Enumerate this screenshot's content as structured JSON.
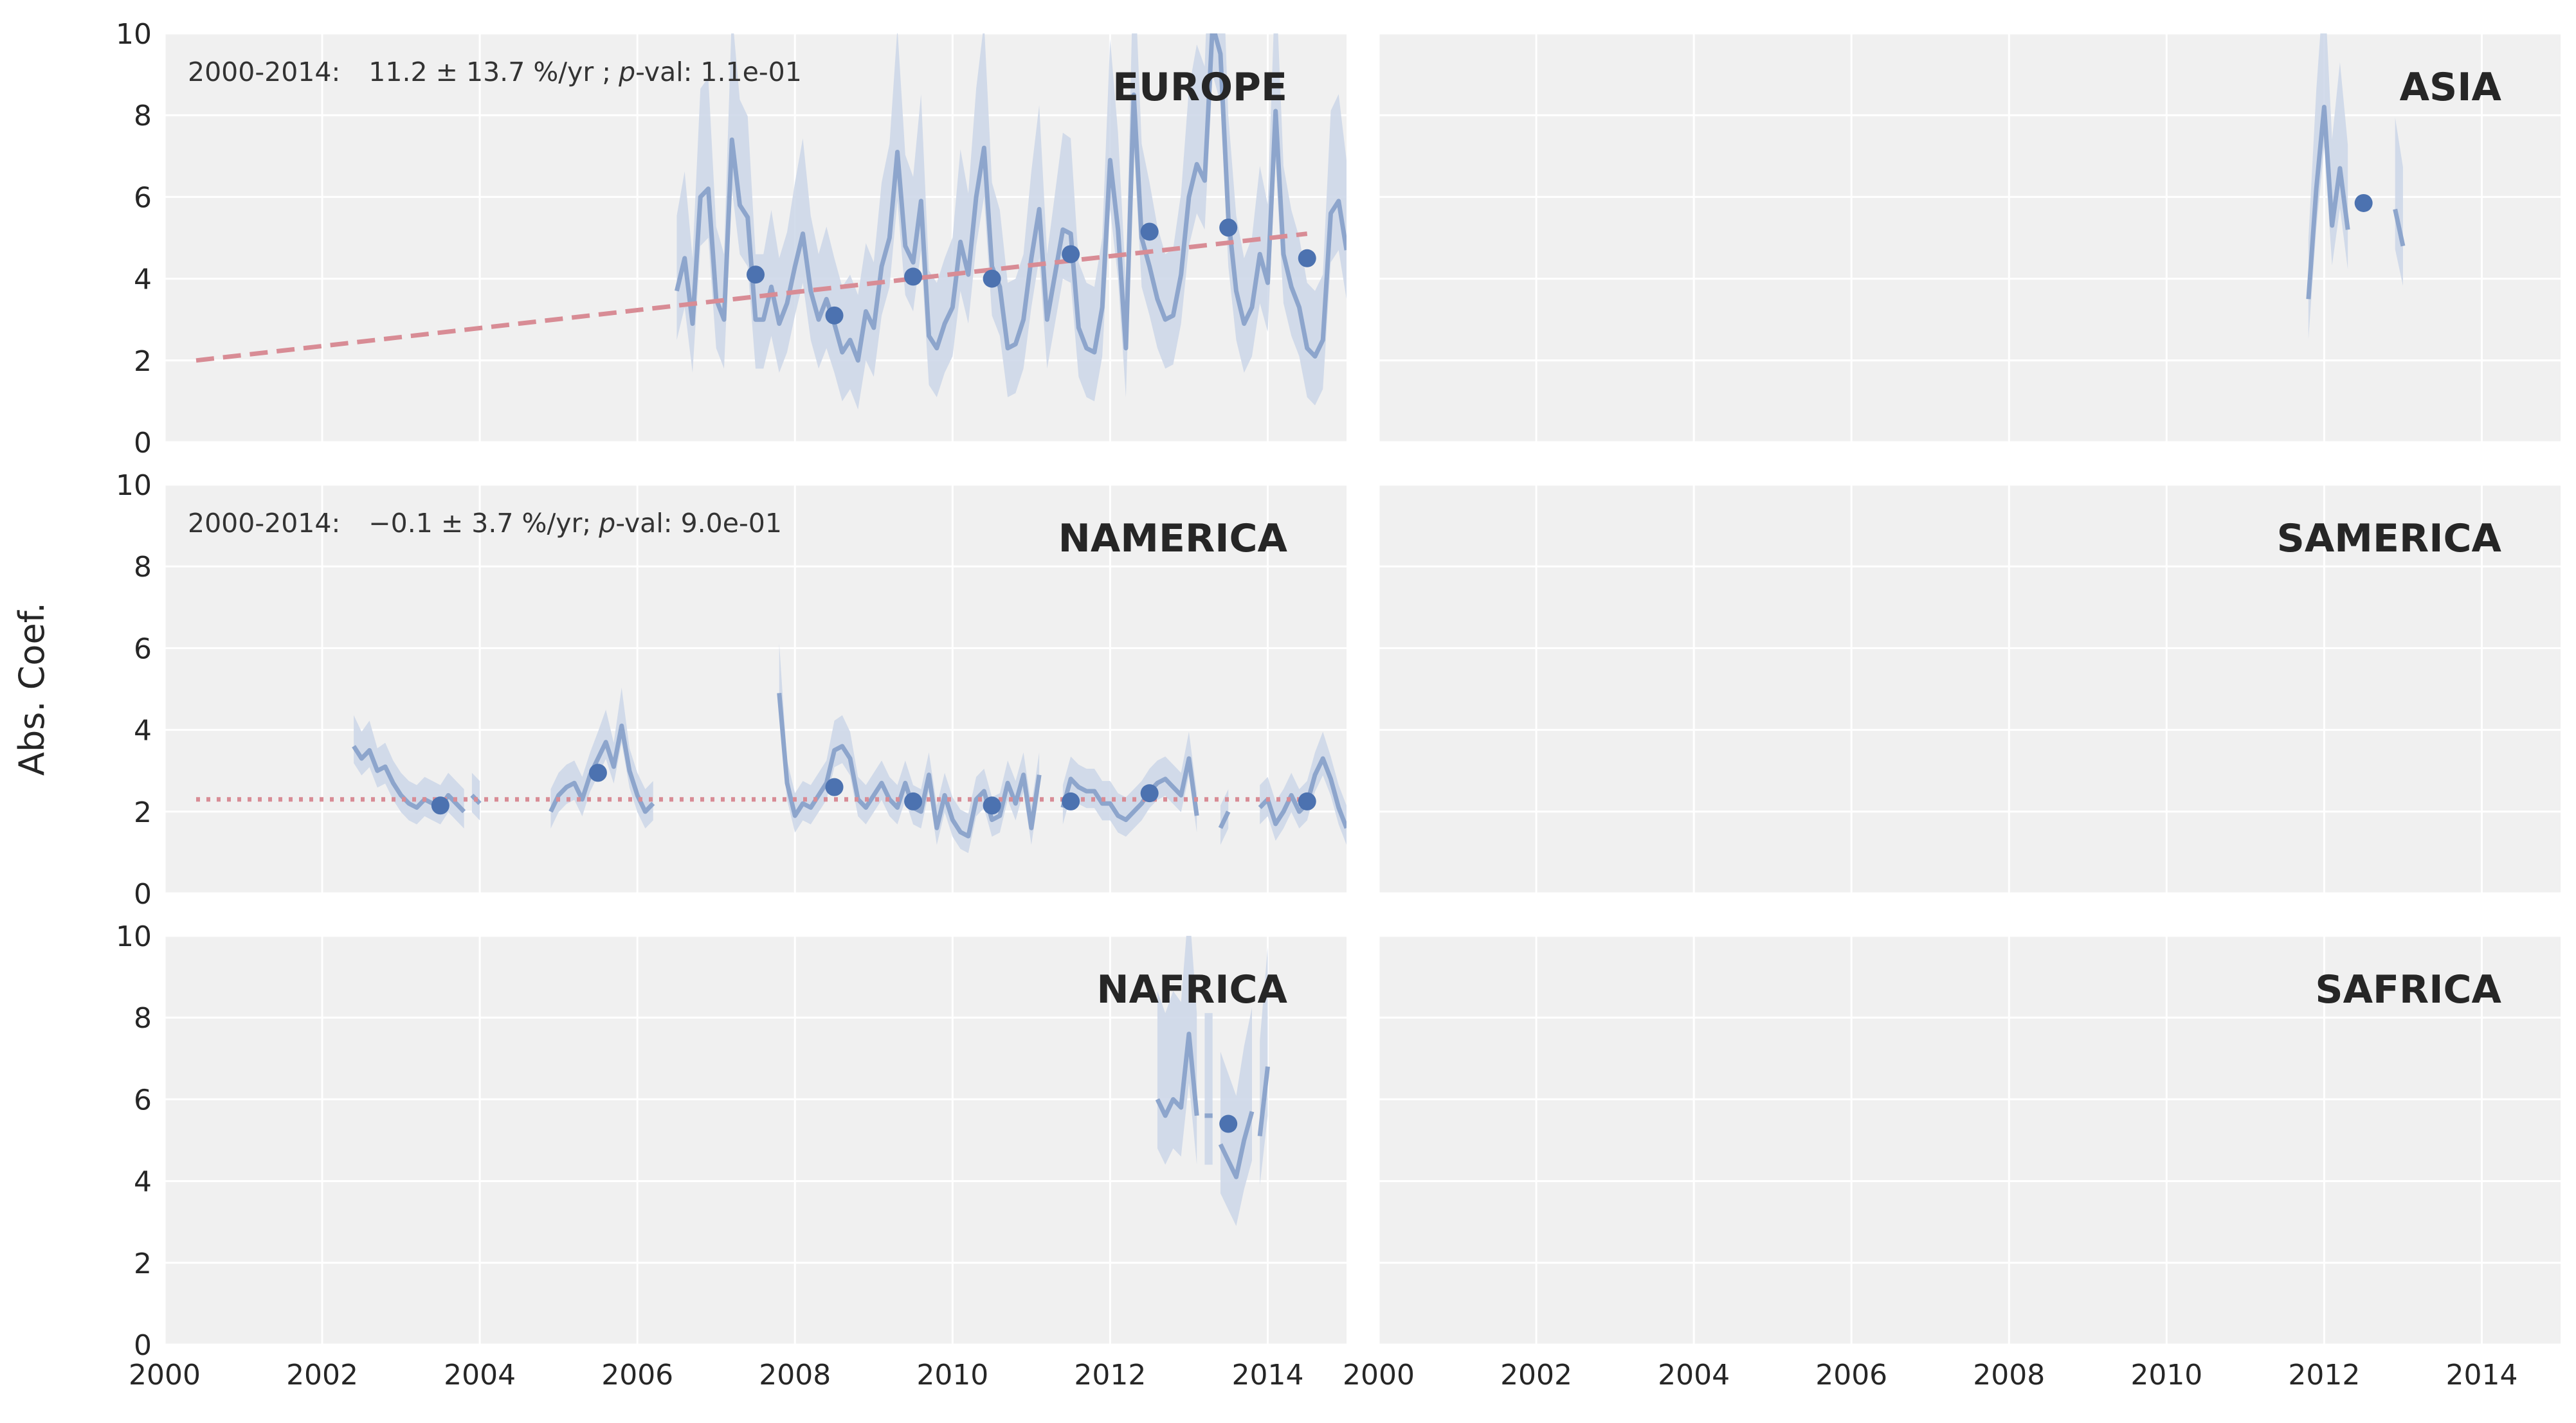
{
  "colors": {
    "panel_bg": "#f0f0f0",
    "grid": "#ffffff",
    "line": "#8da5cc",
    "band": "#cbd6e8",
    "point": "#4c72b0",
    "trend": "#d88c95"
  },
  "figure": {
    "ylabel": "Abs. Coef.",
    "x_ticks": [
      "2000",
      "2002",
      "2004",
      "2006",
      "2008",
      "2010",
      "2012",
      "2014"
    ],
    "y_ticks": [
      "0",
      "2",
      "4",
      "6",
      "8",
      "10"
    ]
  },
  "chart_data": [
    {
      "region": "EUROPE",
      "type": "line",
      "xlim": [
        2000,
        2015
      ],
      "ylim": [
        0,
        10
      ],
      "annotation": {
        "period": "2000-2014:",
        "rate": "11.2 ± 13.7 %/yr ;",
        "pval_label": "p",
        "pval": "-val: 1.1e-01"
      },
      "trend": {
        "style": "dashed",
        "x": [
          2000.4,
          2014.5
        ],
        "y": [
          2.0,
          5.1
        ]
      },
      "monthly": {
        "segments": [
          {
            "x": [
              2006.5,
              2006.6,
              2006.7,
              2006.8,
              2006.9,
              2007.0,
              2007.1,
              2007.2,
              2007.3,
              2007.4,
              2007.5,
              2007.6,
              2007.7,
              2007.8,
              2007.9,
              2008.0,
              2008.1,
              2008.2,
              2008.3,
              2008.4,
              2008.5,
              2008.6,
              2008.7,
              2008.8,
              2008.9,
              2009.0,
              2009.1,
              2009.2,
              2009.3,
              2009.4,
              2009.5,
              2009.6,
              2009.7,
              2009.8,
              2009.9,
              2010.0,
              2010.1,
              2010.2,
              2010.3,
              2010.4,
              2010.5,
              2010.6,
              2010.7,
              2010.8,
              2010.9,
              2011.0,
              2011.1,
              2011.2,
              2011.3,
              2011.4,
              2011.5,
              2011.6,
              2011.7,
              2011.8,
              2011.9,
              2012.0,
              2012.1,
              2012.2,
              2012.3,
              2012.4,
              2012.5,
              2012.6,
              2012.7,
              2012.8,
              2012.9,
              2013.0,
              2013.1,
              2013.2,
              2013.3,
              2013.4,
              2013.5,
              2013.6,
              2013.7,
              2013.8,
              2013.9,
              2014.0,
              2014.1,
              2014.2,
              2014.3,
              2014.4,
              2014.5,
              2014.6,
              2014.7,
              2014.8,
              2014.9,
              2015.0
            ],
            "y": [
              3.7,
              4.5,
              2.9,
              6.0,
              6.2,
              3.5,
              3.0,
              7.4,
              5.8,
              5.5,
              3.0,
              3.0,
              3.8,
              2.9,
              3.4,
              4.3,
              5.1,
              3.7,
              3.0,
              3.5,
              2.9,
              2.2,
              2.5,
              2.0,
              3.2,
              2.8,
              4.3,
              5.0,
              7.1,
              4.8,
              4.4,
              5.9,
              2.6,
              2.3,
              2.9,
              3.3,
              4.9,
              4.1,
              6.0,
              7.2,
              4.3,
              3.8,
              2.3,
              2.4,
              3.0,
              4.5,
              5.7,
              3.0,
              4.1,
              5.2,
              5.1,
              2.8,
              2.3,
              2.2,
              3.3,
              6.9,
              5.2,
              2.3,
              8.5,
              5.0,
              4.3,
              3.5,
              3.0,
              3.1,
              4.1,
              6.0,
              6.8,
              6.4,
              10.2,
              9.5,
              5.5,
              3.7,
              2.9,
              3.3,
              4.6,
              3.9,
              8.1,
              4.6,
              3.8,
              3.3,
              2.3,
              2.1,
              2.5,
              5.6,
              5.9,
              4.7
            ]
          }
        ],
        "band_halfwidth": 1.6
      },
      "annual": {
        "x": [
          2007.5,
          2008.5,
          2009.5,
          2010.5,
          2011.5,
          2012.5,
          2013.5,
          2014.5
        ],
        "y": [
          4.1,
          3.1,
          4.05,
          4.0,
          4.6,
          5.15,
          5.25,
          4.5
        ]
      }
    },
    {
      "region": "ASIA",
      "type": "line",
      "xlim": [
        2000,
        2015
      ],
      "ylim": [
        0,
        10
      ],
      "monthly": {
        "segments": [
          {
            "x": [
              2011.8,
              2011.9,
              2012.0,
              2012.1,
              2012.2,
              2012.3
            ],
            "y": [
              3.5,
              6.2,
              8.2,
              5.3,
              6.7,
              5.2
            ]
          },
          {
            "x": [
              2012.9,
              2013.0
            ],
            "y": [
              5.7,
              4.8
            ]
          }
        ],
        "band_halfwidth": 1.3
      },
      "annual": {
        "x": [
          2012.5
        ],
        "y": [
          5.85
        ]
      }
    },
    {
      "region": "NAMERICA",
      "type": "line",
      "xlim": [
        2000,
        2015
      ],
      "ylim": [
        0,
        10
      ],
      "annotation": {
        "period": "2000-2014:",
        "rate": "−0.1 ± 3.7 %/yr;",
        "pval_label": "p",
        "pval": "-val: 9.0e-01"
      },
      "trend": {
        "style": "dotted",
        "x": [
          2000.4,
          2014.5
        ],
        "y": [
          2.3,
          2.3
        ]
      },
      "monthly": {
        "segments": [
          {
            "x": [
              2002.4,
              2002.5,
              2002.6,
              2002.7,
              2002.8,
              2002.9,
              2003.0,
              2003.1,
              2003.2,
              2003.3,
              2003.4,
              2003.5,
              2003.6,
              2003.7,
              2003.8
            ],
            "y": [
              3.6,
              3.3,
              3.5,
              3.0,
              3.1,
              2.7,
              2.4,
              2.2,
              2.1,
              2.3,
              2.2,
              2.1,
              2.4,
              2.2,
              2.0
            ]
          },
          {
            "x": [
              2003.9,
              2004.0
            ],
            "y": [
              2.4,
              2.2
            ]
          },
          {
            "x": [
              2004.9,
              2005.0,
              2005.1,
              2005.2,
              2005.3,
              2005.4,
              2005.5,
              2005.6,
              2005.7,
              2005.8,
              2005.9,
              2006.0,
              2006.1,
              2006.2
            ],
            "y": [
              2.0,
              2.4,
              2.6,
              2.7,
              2.3,
              2.9,
              3.3,
              3.7,
              3.1,
              4.1,
              3.0,
              2.4,
              2.0,
              2.2
            ]
          },
          {
            "x": [
              2007.8,
              2007.9,
              2008.0,
              2008.1,
              2008.2,
              2008.3,
              2008.4,
              2008.5,
              2008.6,
              2008.7,
              2008.8,
              2008.9,
              2009.0,
              2009.1,
              2009.2,
              2009.3,
              2009.4,
              2009.5,
              2009.6,
              2009.7,
              2009.8,
              2009.9,
              2010.0,
              2010.1,
              2010.2,
              2010.3,
              2010.4,
              2010.5,
              2010.6,
              2010.7,
              2010.8,
              2010.9,
              2011.0,
              2011.1
            ],
            "y": [
              4.9,
              2.7,
              1.9,
              2.2,
              2.1,
              2.4,
              2.7,
              3.5,
              3.6,
              3.3,
              2.3,
              2.1,
              2.4,
              2.7,
              2.3,
              2.1,
              2.7,
              2.1,
              2.0,
              2.9,
              1.6,
              2.4,
              1.8,
              1.5,
              1.4,
              2.3,
              2.5,
              1.8,
              1.9,
              2.7,
              2.2,
              2.9,
              1.6,
              2.9
            ]
          },
          {
            "x": [
              2011.4,
              2011.5,
              2011.6,
              2011.7,
              2011.8,
              2011.9,
              2012.0,
              2012.1,
              2012.2,
              2012.3,
              2012.4,
              2012.5,
              2012.6,
              2012.7,
              2012.8,
              2012.9,
              2013.0,
              2013.1
            ],
            "y": [
              2.1,
              2.8,
              2.6,
              2.5,
              2.5,
              2.2,
              2.2,
              1.9,
              1.8,
              2.0,
              2.2,
              2.5,
              2.7,
              2.8,
              2.6,
              2.4,
              3.3,
              1.9
            ]
          },
          {
            "x": [
              2013.4,
              2013.5
            ],
            "y": [
              1.6,
              2.0
            ]
          },
          {
            "x": [
              2013.9,
              2014.0,
              2014.1,
              2014.2,
              2014.3,
              2014.4,
              2014.5,
              2014.6,
              2014.7,
              2014.8,
              2014.9,
              2015.0
            ],
            "y": [
              2.1,
              2.3,
              1.7,
              2.0,
              2.4,
              2.0,
              2.2,
              2.9,
              3.3,
              2.8,
              2.1,
              1.6
            ]
          }
        ],
        "band_halfwidth": 0.55
      },
      "annual": {
        "x": [
          2003.5,
          2005.5,
          2008.5,
          2009.5,
          2010.5,
          2011.5,
          2012.5,
          2014.5
        ],
        "y": [
          2.15,
          2.95,
          2.6,
          2.25,
          2.15,
          2.25,
          2.45,
          2.25
        ]
      }
    },
    {
      "region": "SAMERICA",
      "type": "line",
      "xlim": [
        2000,
        2015
      ],
      "ylim": [
        0,
        10
      ],
      "monthly": {
        "segments": [],
        "band_halfwidth": 0
      },
      "annual": {
        "x": [],
        "y": []
      }
    },
    {
      "region": "NAFRICA",
      "type": "line",
      "xlim": [
        2000,
        2015
      ],
      "ylim": [
        0,
        10
      ],
      "monthly": {
        "segments": [
          {
            "x": [
              2012.6,
              2012.7,
              2012.8,
              2012.9,
              2013.0,
              2013.1
            ],
            "y": [
              6.0,
              5.6,
              6.0,
              5.8,
              7.6,
              5.6
            ]
          },
          {
            "x": [
              2013.2,
              2013.3
            ],
            "y": [
              5.6,
              5.6
            ]
          },
          {
            "x": [
              2013.4,
              2013.5,
              2013.6,
              2013.7,
              2013.8
            ],
            "y": [
              4.9,
              4.5,
              4.1,
              5.0,
              5.7
            ]
          },
          {
            "x": [
              2013.9,
              2014.0
            ],
            "y": [
              5.1,
              6.8
            ]
          }
        ],
        "band_halfwidth": 1.6
      },
      "annual": {
        "x": [
          2013.5
        ],
        "y": [
          5.4
        ]
      }
    },
    {
      "region": "SAFRICA",
      "type": "line",
      "xlim": [
        2000,
        2015
      ],
      "ylim": [
        0,
        10
      ],
      "monthly": {
        "segments": [],
        "band_halfwidth": 0
      },
      "annual": {
        "x": [],
        "y": []
      }
    }
  ]
}
